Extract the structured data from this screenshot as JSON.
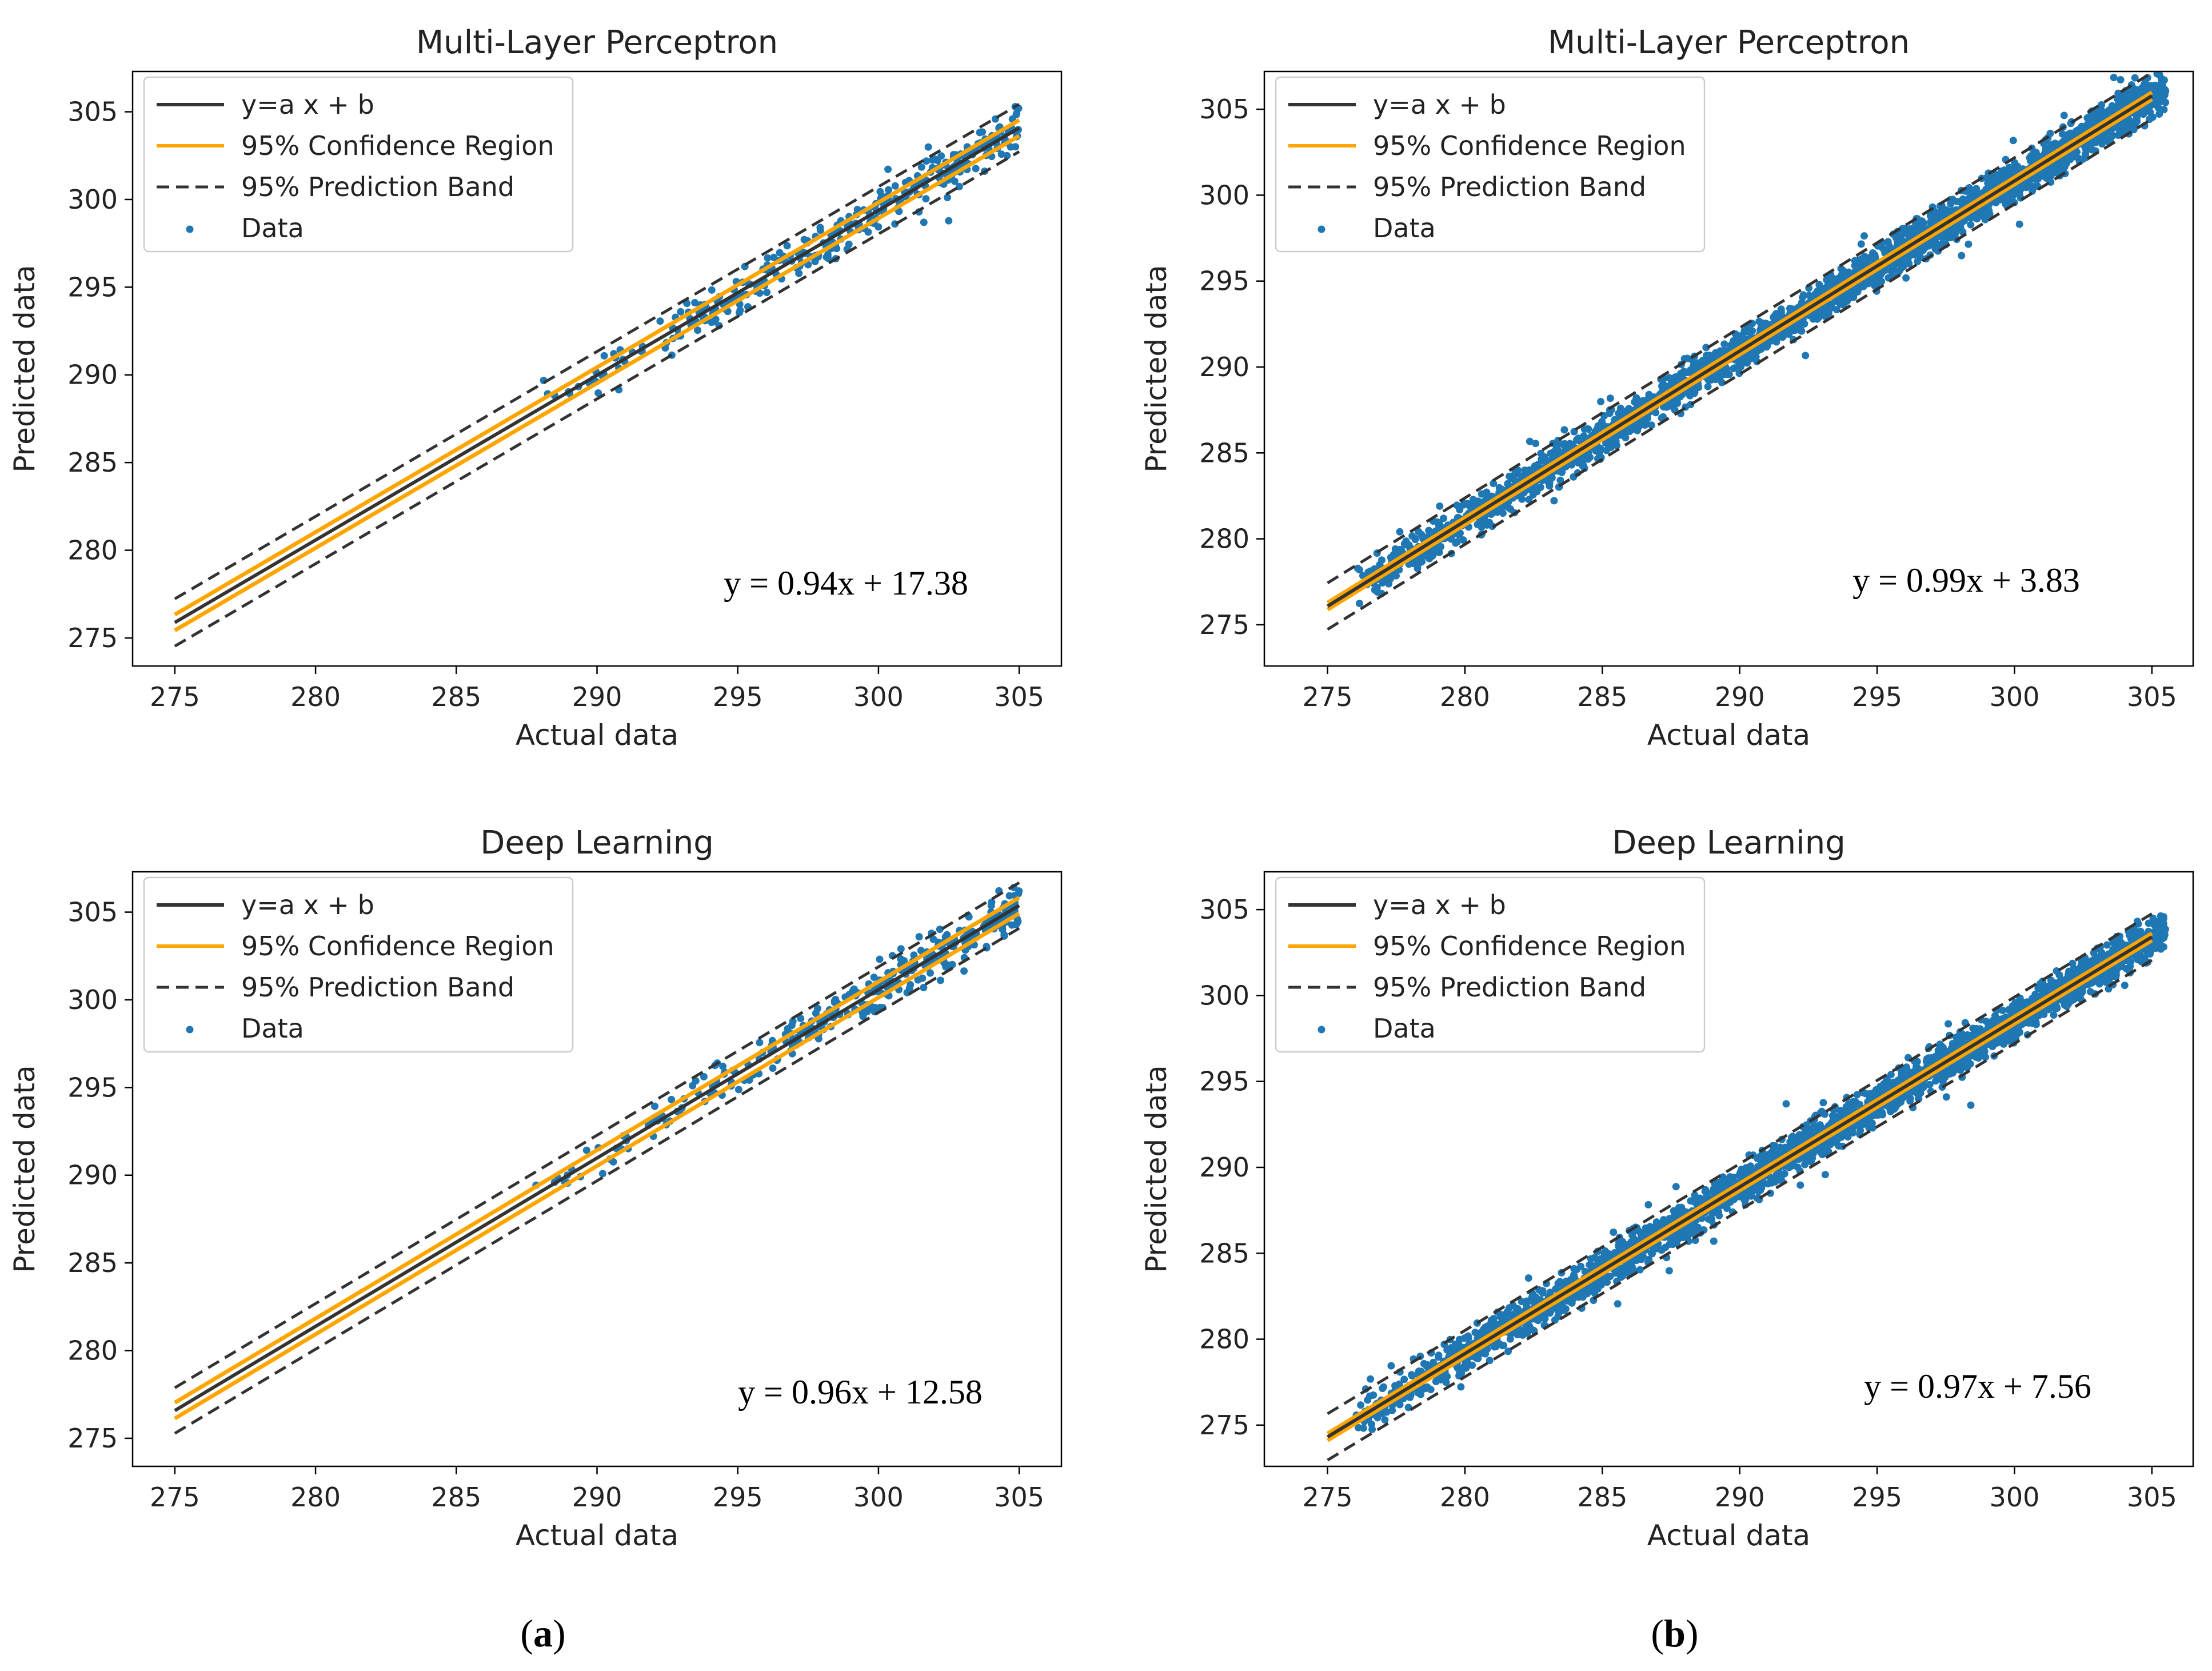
{
  "figure": {
    "panel_labels": [
      {
        "open": "(",
        "letter": "a",
        "close": ")"
      },
      {
        "open": "(",
        "letter": "b",
        "close": ")"
      }
    ]
  },
  "chart_data": [
    {
      "type": "scatter",
      "title": "Multi-Layer Perceptron",
      "xlabel": "Actual data",
      "ylabel": "Predicted data",
      "xlim": [
        273.5,
        306.5
      ],
      "ylim": [
        273.4,
        307.3
      ],
      "xticks": [
        275,
        280,
        285,
        290,
        295,
        300,
        305
      ],
      "yticks": [
        275,
        280,
        285,
        290,
        295,
        300,
        305
      ],
      "legend": {
        "position": "top-left",
        "entries": [
          {
            "label": "y=a x + b",
            "style": "solid-line",
            "color": "#333333"
          },
          {
            "label": "95% Confidence Region",
            "style": "solid-line",
            "color": "#ffa500"
          },
          {
            "label": "95% Prediction Band",
            "style": "dashed-line",
            "color": "#333333"
          },
          {
            "label": "Data",
            "style": "marker",
            "color": "#1f77b4"
          }
        ]
      },
      "equation": "y = 0.94x + 17.38",
      "fit": {
        "slope": 0.94,
        "intercept": 17.38
      },
      "fit_line_range": [
        275,
        305
      ],
      "confidence_halfwidth": 0.45,
      "prediction_halfwidth": 1.35,
      "data_x_range": [
        287,
        305
      ],
      "data_noise": 0.6,
      "data_count": 320,
      "data_seed": 11
    },
    {
      "type": "scatter",
      "title": "Multi-Layer Perceptron",
      "xlabel": "Actual data",
      "ylabel": "Predicted data",
      "xlim": [
        272.7,
        306.5
      ],
      "ylim": [
        272.6,
        307.2
      ],
      "xticks": [
        275,
        280,
        285,
        290,
        295,
        300,
        305
      ],
      "yticks": [
        275,
        280,
        285,
        290,
        295,
        300,
        305
      ],
      "legend": {
        "position": "top-left",
        "entries": [
          {
            "label": "y=a x + b",
            "style": "solid-line",
            "color": "#333333"
          },
          {
            "label": "95% Confidence Region",
            "style": "solid-line",
            "color": "#ffa500"
          },
          {
            "label": "95% Prediction Band",
            "style": "dashed-line",
            "color": "#333333"
          },
          {
            "label": "Data",
            "style": "marker",
            "color": "#1f77b4"
          }
        ]
      },
      "equation": "y = 0.99x + 3.83",
      "fit": {
        "slope": 0.99,
        "intercept": 3.83
      },
      "fit_line_range": [
        275,
        305
      ],
      "confidence_halfwidth": 0.2,
      "prediction_halfwidth": 1.35,
      "data_x_range": [
        276,
        305.5
      ],
      "data_noise": 0.55,
      "data_count": 2600,
      "data_seed": 23
    },
    {
      "type": "scatter",
      "title": "Deep Learning",
      "xlabel": "Actual data",
      "ylabel": "Predicted data",
      "xlim": [
        273.5,
        306.5
      ],
      "ylim": [
        273.4,
        307.3
      ],
      "xticks": [
        275,
        280,
        285,
        290,
        295,
        300,
        305
      ],
      "yticks": [
        275,
        280,
        285,
        290,
        295,
        300,
        305
      ],
      "legend": {
        "position": "top-left",
        "entries": [
          {
            "label": "y=a x + b",
            "style": "solid-line",
            "color": "#333333"
          },
          {
            "label": "95% Confidence Region",
            "style": "solid-line",
            "color": "#ffa500"
          },
          {
            "label": "95% Prediction Band",
            "style": "dashed-line",
            "color": "#333333"
          },
          {
            "label": "Data",
            "style": "marker",
            "color": "#1f77b4"
          }
        ]
      },
      "equation": "y = 0.96x + 12.58",
      "fit": {
        "slope": 0.96,
        "intercept": 12.58
      },
      "fit_line_range": [
        275,
        305
      ],
      "confidence_halfwidth": 0.45,
      "prediction_halfwidth": 1.3,
      "data_x_range": [
        287,
        305
      ],
      "data_noise": 0.6,
      "data_count": 320,
      "data_seed": 37
    },
    {
      "type": "scatter",
      "title": "Deep Learning",
      "xlabel": "Actual data",
      "ylabel": "Predicted data",
      "xlim": [
        272.7,
        306.5
      ],
      "ylim": [
        272.6,
        307.2
      ],
      "xticks": [
        275,
        280,
        285,
        290,
        295,
        300,
        305
      ],
      "yticks": [
        275,
        280,
        285,
        290,
        295,
        300,
        305
      ],
      "legend": {
        "position": "top-left",
        "entries": [
          {
            "label": "y=a x + b",
            "style": "solid-line",
            "color": "#333333"
          },
          {
            "label": "95% Confidence Region",
            "style": "solid-line",
            "color": "#ffa500"
          },
          {
            "label": "95% Prediction Band",
            "style": "dashed-line",
            "color": "#333333"
          },
          {
            "label": "Data",
            "style": "marker",
            "color": "#1f77b4"
          }
        ]
      },
      "equation": "y = 0.97x + 7.56",
      "fit": {
        "slope": 0.97,
        "intercept": 7.56
      },
      "fit_line_range": [
        275,
        305
      ],
      "confidence_halfwidth": 0.2,
      "prediction_halfwidth": 1.35,
      "data_x_range": [
        276,
        305.5
      ],
      "data_noise": 0.55,
      "data_count": 2600,
      "data_seed": 53
    }
  ]
}
